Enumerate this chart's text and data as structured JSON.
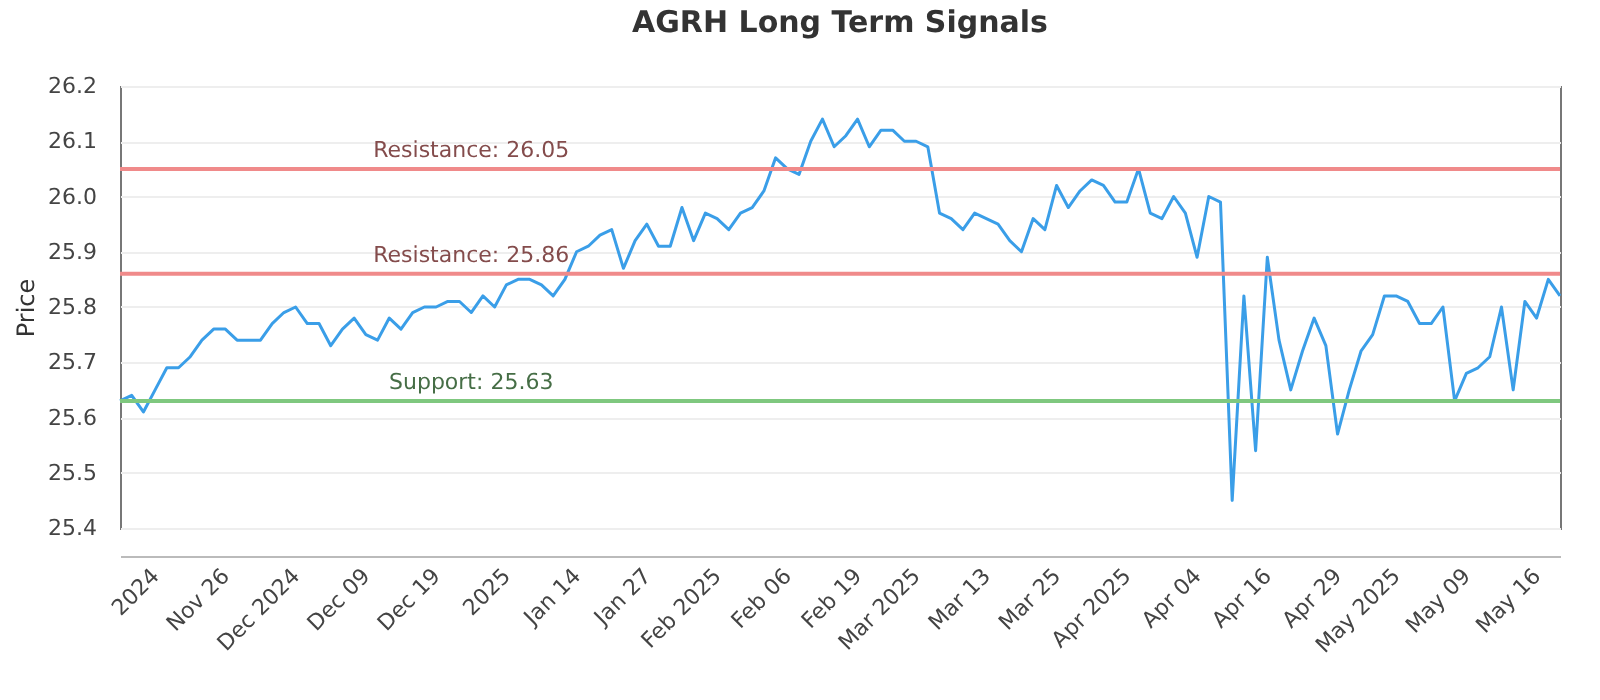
{
  "chart_data": {
    "type": "line",
    "title": "AGRH Long Term Signals",
    "ylabel": "Price",
    "categories": [
      null,
      null,
      null,
      "2024",
      null,
      null,
      null,
      null,
      null,
      "Nov 26",
      null,
      null,
      null,
      null,
      null,
      "Dec 2024",
      null,
      null,
      null,
      null,
      null,
      "Dec 09",
      null,
      null,
      null,
      null,
      null,
      "Dec 19",
      null,
      null,
      null,
      null,
      null,
      "2025",
      null,
      null,
      null,
      null,
      null,
      "Jan 14",
      null,
      null,
      null,
      null,
      null,
      "Jan 27",
      null,
      null,
      null,
      null,
      null,
      "Feb 2025",
      null,
      null,
      null,
      null,
      null,
      "Feb 06",
      null,
      null,
      null,
      null,
      null,
      "Feb 19",
      null,
      null,
      null,
      null,
      "Mar 2025",
      null,
      null,
      null,
      null,
      null,
      "Mar 13",
      null,
      null,
      null,
      null,
      null,
      "Mar 25",
      null,
      null,
      null,
      null,
      null,
      "Apr 2025",
      null,
      null,
      null,
      null,
      null,
      "Apr 04",
      null,
      null,
      null,
      null,
      null,
      "Apr 16",
      null,
      null,
      null,
      null,
      null,
      "Apr 29",
      null,
      null,
      null,
      null,
      "May 2025",
      null,
      null,
      null,
      null,
      null,
      "May 09",
      null,
      null,
      null,
      null,
      null,
      "May 16",
      null,
      null
    ],
    "series": [
      {
        "color": "#3a9ee8",
        "values": [
          25.63,
          25.64,
          25.61,
          25.65,
          25.69,
          25.69,
          25.71,
          25.74,
          25.76,
          25.76,
          25.74,
          25.74,
          25.74,
          25.77,
          25.79,
          25.8,
          25.77,
          25.77,
          25.73,
          25.76,
          25.78,
          25.75,
          25.74,
          25.78,
          25.76,
          25.79,
          25.8,
          25.8,
          25.81,
          25.81,
          25.79,
          25.82,
          25.8,
          25.84,
          25.85,
          25.85,
          25.84,
          25.82,
          25.85,
          25.9,
          25.91,
          25.93,
          25.94,
          25.87,
          25.92,
          25.95,
          25.91,
          25.91,
          25.98,
          25.92,
          25.97,
          25.96,
          25.94,
          25.97,
          25.98,
          26.01,
          26.07,
          26.05,
          26.04,
          26.1,
          26.14,
          26.09,
          26.11,
          26.14,
          26.09,
          26.12,
          26.12,
          26.1,
          26.1,
          26.09,
          25.97,
          25.96,
          25.94,
          25.97,
          25.96,
          25.95,
          25.92,
          25.9,
          25.96,
          25.94,
          26.02,
          25.98,
          26.01,
          26.03,
          26.02,
          25.99,
          25.99,
          26.05,
          25.97,
          25.96,
          26.0,
          25.97,
          25.89,
          26.0,
          25.99,
          25.45,
          25.82,
          25.54,
          25.89,
          25.74,
          25.65,
          25.72,
          25.78,
          25.73,
          25.57,
          25.65,
          25.72,
          25.75,
          25.82,
          25.82,
          25.81,
          25.77,
          25.77,
          25.8,
          25.63,
          25.68,
          25.69,
          25.71,
          25.8,
          25.65,
          25.81,
          25.78,
          25.85,
          25.82
        ]
      }
    ],
    "ylim": [
      25.4,
      26.2
    ],
    "yticks": [
      {
        "value": 25.4,
        "label": "25.4"
      },
      {
        "value": 25.5,
        "label": "25.5"
      },
      {
        "value": 25.6,
        "label": "25.6"
      },
      {
        "value": 25.7,
        "label": "25.7"
      },
      {
        "value": 25.8,
        "label": "25.8"
      },
      {
        "value": 25.9,
        "label": "25.9"
      },
      {
        "value": 26,
        "label": "26.0"
      },
      {
        "value": 26.1,
        "label": "26.1"
      },
      {
        "value": 26.2,
        "label": "26.2"
      }
    ],
    "grid": "y",
    "marker": "none",
    "line_style": "solid",
    "ref_lines": [
      {
        "axis": "y",
        "value": 26.05,
        "label": "Resistance: 26.05",
        "color": "#f08a8a"
      },
      {
        "axis": "y",
        "value": 25.86,
        "label": "Resistance: 25.86",
        "color": "#f08a8a"
      },
      {
        "axis": "y",
        "value": 25.63,
        "label": "Support: 25.63",
        "color": "#7fc87f"
      }
    ]
  }
}
